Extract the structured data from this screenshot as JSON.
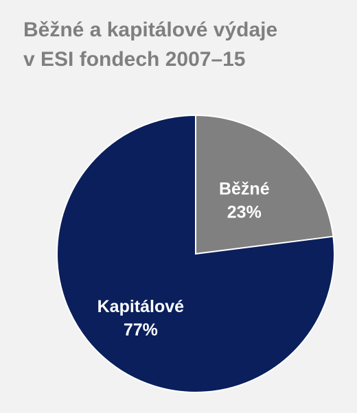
{
  "chart_data": {
    "type": "pie",
    "title": [
      "Běžné a kapitálové výdaje",
      "v ESI fondech 2007–15"
    ],
    "slices": [
      {
        "label": "Běžné",
        "value": 23,
        "value_label": "23%",
        "color": "#808080"
      },
      {
        "label": "Kapitálové",
        "value": 77,
        "value_label": "77%",
        "color": "#0a1f5c"
      }
    ],
    "start": "12 o'clock",
    "direction": "clockwise"
  }
}
